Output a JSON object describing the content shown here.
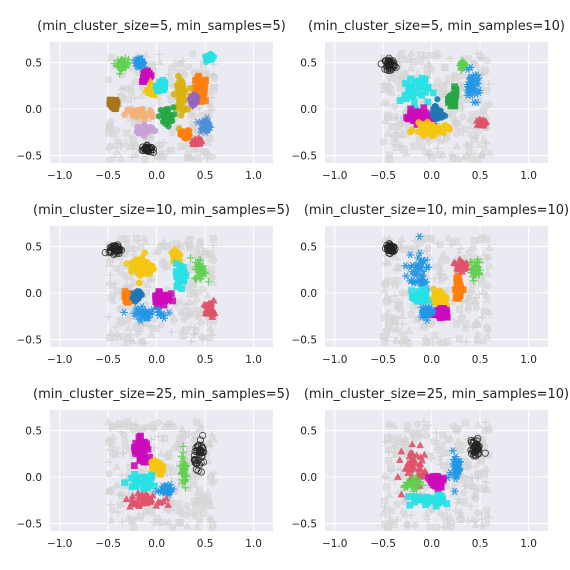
{
  "chart_data": [
    {
      "type": "scatter",
      "title": "(min_cluster_size=5, min_samples=5)",
      "xlim": [
        -1.1,
        1.2
      ],
      "ylim": [
        -0.58,
        0.72
      ],
      "xticks": [
        -1.0,
        -0.5,
        0.0,
        0.5,
        1.0
      ],
      "xtick_labels": [
        "−1.0",
        "−0.5",
        "0.0",
        "0.5",
        "1.0"
      ],
      "yticks": [
        -0.5,
        0.0,
        0.5
      ],
      "ytick_labels": [
        "−0.5",
        "0.0",
        "0.5"
      ],
      "grid": true,
      "noise_region": {
        "x": [
          -0.5,
          0.6
        ],
        "y": [
          -0.55,
          0.6
        ]
      },
      "clusters": [
        {
          "color": "#222222",
          "marker": "o",
          "x": -0.1,
          "y": -0.43,
          "sx": 0.04,
          "sy": 0.03
        },
        {
          "color": "#61d04f",
          "marker": "+",
          "x": -0.35,
          "y": 0.48,
          "sx": 0.05,
          "sy": 0.05
        },
        {
          "color": "#2297e6",
          "marker": "*",
          "x": -0.18,
          "y": 0.5,
          "sx": 0.04,
          "sy": 0.03
        },
        {
          "color": "#cd0bbc",
          "marker": "s",
          "x": -0.1,
          "y": 0.35,
          "sx": 0.04,
          "sy": 0.05
        },
        {
          "color": "#f5c710",
          "marker": "^",
          "x": -0.05,
          "y": 0.2,
          "sx": 0.05,
          "sy": 0.05
        },
        {
          "color": "#ff7f0e",
          "marker": "s",
          "x": 0.45,
          "y": 0.2,
          "sx": 0.06,
          "sy": 0.12
        },
        {
          "color": "#28e2e5",
          "marker": "p",
          "x": 0.55,
          "y": 0.55,
          "sx": 0.03,
          "sy": 0.03
        },
        {
          "color": "#28e2e5",
          "marker": "s",
          "x": 0.05,
          "y": 0.25,
          "sx": 0.04,
          "sy": 0.04
        },
        {
          "color": "#d9b310",
          "marker": "o",
          "x": 0.25,
          "y": 0.15,
          "sx": 0.05,
          "sy": 0.15
        },
        {
          "color": "#28a745",
          "marker": "h",
          "x": 0.1,
          "y": -0.08,
          "sx": 0.06,
          "sy": 0.08
        },
        {
          "color": "#f5b37a",
          "marker": "o",
          "x": -0.18,
          "y": -0.05,
          "sx": 0.12,
          "sy": 0.06
        },
        {
          "color": "#c8a2d6",
          "marker": "o",
          "x": -0.12,
          "y": -0.22,
          "sx": 0.08,
          "sy": 0.04
        },
        {
          "color": "#df536b",
          "marker": "^",
          "x": 0.42,
          "y": -0.35,
          "sx": 0.03,
          "sy": 0.03
        },
        {
          "color": "#4f8fd6",
          "marker": "*",
          "x": 0.5,
          "y": -0.18,
          "sx": 0.05,
          "sy": 0.06
        },
        {
          "color": "#a6761d",
          "marker": "s",
          "x": -0.45,
          "y": 0.05,
          "sx": 0.03,
          "sy": 0.04
        },
        {
          "color": "#9467bd",
          "marker": "D",
          "x": 0.38,
          "y": 0.1,
          "sx": 0.03,
          "sy": 0.05
        },
        {
          "color": "#ff7f0e",
          "marker": "h",
          "x": 0.3,
          "y": -0.28,
          "sx": 0.04,
          "sy": 0.04
        }
      ]
    },
    {
      "type": "scatter",
      "title": "(min_cluster_size=5, min_samples=10)",
      "xlim": [
        -1.1,
        1.2
      ],
      "ylim": [
        -0.58,
        0.72
      ],
      "xticks": [
        -1.0,
        -0.5,
        0.0,
        0.5,
        1.0
      ],
      "xtick_labels": [
        "−1.0",
        "−0.5",
        "0.0",
        "0.5",
        "1.0"
      ],
      "yticks": [
        -0.5,
        0.0,
        0.5
      ],
      "ytick_labels": [
        "−0.5",
        "0.0",
        "0.5"
      ],
      "grid": true,
      "noise_region": {
        "x": [
          -0.5,
          0.6
        ],
        "y": [
          -0.55,
          0.6
        ]
      },
      "clusters": [
        {
          "color": "#222222",
          "marker": "o",
          "x": -0.43,
          "y": 0.48,
          "sx": 0.04,
          "sy": 0.05
        },
        {
          "color": "#61d04f",
          "marker": "+",
          "x": 0.32,
          "y": 0.47,
          "sx": 0.02,
          "sy": 0.03
        },
        {
          "color": "#28e2e5",
          "marker": "s",
          "x": -0.18,
          "y": 0.2,
          "sx": 0.12,
          "sy": 0.15
        },
        {
          "color": "#cd0bbc",
          "marker": "s",
          "x": -0.15,
          "y": -0.08,
          "sx": 0.1,
          "sy": 0.06
        },
        {
          "color": "#2297e6",
          "marker": "*",
          "x": 0.42,
          "y": 0.25,
          "sx": 0.07,
          "sy": 0.12
        },
        {
          "color": "#28a745",
          "marker": "s",
          "x": 0.22,
          "y": 0.1,
          "sx": 0.03,
          "sy": 0.08
        },
        {
          "color": "#1f77b4",
          "marker": "h",
          "x": 0.05,
          "y": -0.05,
          "sx": 0.05,
          "sy": 0.1
        },
        {
          "color": "#f5c710",
          "marker": "o",
          "x": 0.0,
          "y": -0.22,
          "sx": 0.15,
          "sy": 0.05
        },
        {
          "color": "#df536b",
          "marker": "^",
          "x": 0.52,
          "y": -0.15,
          "sx": 0.03,
          "sy": 0.03
        }
      ]
    },
    {
      "type": "scatter",
      "title": "(min_cluster_size=10, min_samples=5)",
      "xlim": [
        -1.1,
        1.2
      ],
      "ylim": [
        -0.58,
        0.72
      ],
      "xticks": [
        -1.0,
        -0.5,
        0.0,
        0.5,
        1.0
      ],
      "xtick_labels": [
        "−1.0",
        "−0.5",
        "0.0",
        "0.5",
        "1.0"
      ],
      "yticks": [
        -0.5,
        0.0,
        0.5
      ],
      "ytick_labels": [
        "−0.5",
        "0.0",
        "0.5"
      ],
      "grid": true,
      "noise_region": {
        "x": [
          -0.5,
          0.6
        ],
        "y": [
          -0.55,
          0.6
        ]
      },
      "clusters": [
        {
          "color": "#222222",
          "marker": "o",
          "x": -0.43,
          "y": 0.47,
          "sx": 0.05,
          "sy": 0.04
        },
        {
          "color": "#f5c710",
          "marker": "o",
          "x": -0.15,
          "y": 0.28,
          "sx": 0.1,
          "sy": 0.12
        },
        {
          "color": "#f5c710",
          "marker": "o",
          "x": 0.2,
          "y": 0.4,
          "sx": 0.04,
          "sy": 0.06
        },
        {
          "color": "#28e2e5",
          "marker": "s",
          "x": 0.25,
          "y": 0.2,
          "sx": 0.04,
          "sy": 0.1
        },
        {
          "color": "#61d04f",
          "marker": "+",
          "x": 0.45,
          "y": 0.25,
          "sx": 0.05,
          "sy": 0.1
        },
        {
          "color": "#cd0bbc",
          "marker": "s",
          "x": 0.05,
          "y": -0.05,
          "sx": 0.07,
          "sy": 0.07
        },
        {
          "color": "#2297e6",
          "marker": "*",
          "x": -0.1,
          "y": -0.22,
          "sx": 0.17,
          "sy": 0.05
        },
        {
          "color": "#ff7f0e",
          "marker": "s",
          "x": -0.3,
          "y": -0.05,
          "sx": 0.03,
          "sy": 0.05
        },
        {
          "color": "#1f77b4",
          "marker": "h",
          "x": -0.2,
          "y": -0.02,
          "sx": 0.03,
          "sy": 0.04
        },
        {
          "color": "#df536b",
          "marker": "^",
          "x": 0.55,
          "y": -0.18,
          "sx": 0.04,
          "sy": 0.06
        }
      ]
    },
    {
      "type": "scatter",
      "title": "(min_cluster_size=10, min_samples=10)",
      "xlim": [
        -1.1,
        1.2
      ],
      "ylim": [
        -0.58,
        0.72
      ],
      "xticks": [
        -1.0,
        -0.5,
        0.0,
        0.5,
        1.0
      ],
      "xtick_labels": [
        "−1.0",
        "−0.5",
        "0.0",
        "0.5",
        "1.0"
      ],
      "yticks": [
        -0.5,
        0.0,
        0.5
      ],
      "ytick_labels": [
        "−0.5",
        "0.0",
        "0.5"
      ],
      "grid": true,
      "noise_region": {
        "x": [
          -0.5,
          0.6
        ],
        "y": [
          -0.55,
          0.6
        ]
      },
      "clusters": [
        {
          "color": "#222222",
          "marker": "o",
          "x": -0.42,
          "y": 0.48,
          "sx": 0.04,
          "sy": 0.04
        },
        {
          "color": "#2297e6",
          "marker": "*",
          "x": -0.15,
          "y": 0.22,
          "sx": 0.11,
          "sy": 0.18
        },
        {
          "color": "#28e2e5",
          "marker": "s",
          "x": -0.12,
          "y": -0.05,
          "sx": 0.07,
          "sy": 0.06
        },
        {
          "color": "#f5c710",
          "marker": "o",
          "x": 0.08,
          "y": -0.05,
          "sx": 0.05,
          "sy": 0.08
        },
        {
          "color": "#cd0bbc",
          "marker": "s",
          "x": 0.1,
          "y": -0.22,
          "sx": 0.06,
          "sy": 0.04
        },
        {
          "color": "#2297e6",
          "marker": "*",
          "x": -0.05,
          "y": -0.2,
          "sx": 0.06,
          "sy": 0.05
        },
        {
          "color": "#ff7f0e",
          "marker": "s",
          "x": 0.28,
          "y": 0.05,
          "sx": 0.03,
          "sy": 0.1
        },
        {
          "color": "#61d04f",
          "marker": "+",
          "x": 0.45,
          "y": 0.25,
          "sx": 0.04,
          "sy": 0.1
        },
        {
          "color": "#df536b",
          "marker": "^",
          "x": 0.3,
          "y": 0.3,
          "sx": 0.04,
          "sy": 0.04
        }
      ]
    },
    {
      "type": "scatter",
      "title": "(min_cluster_size=25, min_samples=5)",
      "xlim": [
        -1.1,
        1.2
      ],
      "ylim": [
        -0.58,
        0.72
      ],
      "xticks": [
        -1.0,
        -0.5,
        0.0,
        0.5,
        1.0
      ],
      "xtick_labels": [
        "−1.0",
        "−0.5",
        "0.0",
        "0.5",
        "1.0"
      ],
      "yticks": [
        -0.5,
        0.0,
        0.5
      ],
      "ytick_labels": [
        "−0.5",
        "0.0",
        "0.5"
      ],
      "grid": true,
      "noise_region": {
        "x": [
          -0.5,
          0.6
        ],
        "y": [
          -0.55,
          0.6
        ]
      },
      "clusters": [
        {
          "color": "#222222",
          "marker": "o",
          "x": 0.45,
          "y": 0.25,
          "sx": 0.05,
          "sy": 0.12
        },
        {
          "color": "#cd0bbc",
          "marker": "s",
          "x": -0.15,
          "y": 0.25,
          "sx": 0.08,
          "sy": 0.12
        },
        {
          "color": "#61d04f",
          "marker": "+",
          "x": 0.28,
          "y": 0.05,
          "sx": 0.03,
          "sy": 0.14
        },
        {
          "color": "#f5c710",
          "marker": "o",
          "x": 0.0,
          "y": 0.1,
          "sx": 0.05,
          "sy": 0.08
        },
        {
          "color": "#28e2e5",
          "marker": "s",
          "x": -0.15,
          "y": -0.05,
          "sx": 0.12,
          "sy": 0.06
        },
        {
          "color": "#2297e6",
          "marker": "*",
          "x": 0.1,
          "y": -0.12,
          "sx": 0.06,
          "sy": 0.05
        },
        {
          "color": "#df536b",
          "marker": "^",
          "x": -0.15,
          "y": -0.25,
          "sx": 0.14,
          "sy": 0.05
        }
      ]
    },
    {
      "type": "scatter",
      "title": "(min_cluster_size=25, min_samples=10)",
      "xlim": [
        -1.1,
        1.2
      ],
      "ylim": [
        -0.58,
        0.72
      ],
      "xticks": [
        -1.0,
        -0.5,
        0.0,
        0.5,
        1.0
      ],
      "xtick_labels": [
        "−1.0",
        "−0.5",
        "0.0",
        "0.5",
        "1.0"
      ],
      "yticks": [
        -0.5,
        0.0,
        0.5
      ],
      "ytick_labels": [
        "−0.5",
        "0.0",
        "0.5"
      ],
      "grid": true,
      "noise_region": {
        "x": [
          -0.5,
          0.6
        ],
        "y": [
          -0.55,
          0.6
        ]
      },
      "clusters": [
        {
          "color": "#222222",
          "marker": "o",
          "x": 0.45,
          "y": 0.3,
          "sx": 0.04,
          "sy": 0.08
        },
        {
          "color": "#df536b",
          "marker": "^",
          "x": -0.15,
          "y": 0.1,
          "sx": 0.12,
          "sy": 0.18
        },
        {
          "color": "#2297e6",
          "marker": "*",
          "x": 0.25,
          "y": 0.1,
          "sx": 0.05,
          "sy": 0.15
        },
        {
          "color": "#61d04f",
          "marker": "+",
          "x": -0.2,
          "y": -0.08,
          "sx": 0.07,
          "sy": 0.05
        },
        {
          "color": "#cd0bbc",
          "marker": "s",
          "x": 0.05,
          "y": -0.05,
          "sx": 0.06,
          "sy": 0.06
        },
        {
          "color": "#28e2e5",
          "marker": "s",
          "x": -0.05,
          "y": -0.25,
          "sx": 0.15,
          "sy": 0.05
        }
      ]
    }
  ]
}
